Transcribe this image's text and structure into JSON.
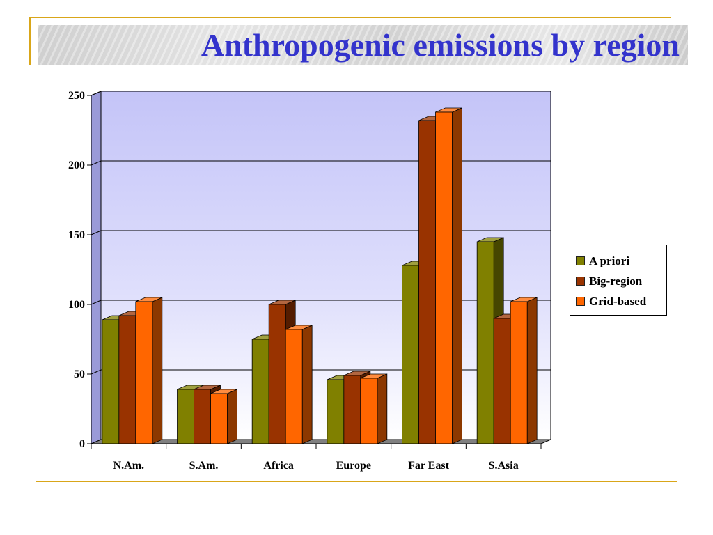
{
  "slide": {
    "title": "Anthropogenic emissions by region"
  },
  "chart_data": {
    "type": "bar",
    "title": "",
    "xlabel": "",
    "ylabel": "",
    "categories": [
      "N.Am.",
      "S.Am.",
      "Africa",
      "Europe",
      "Far East",
      "S.Asia"
    ],
    "series": [
      {
        "name": "A priori",
        "color": "#808000",
        "values": [
          89,
          39,
          75,
          46,
          128,
          145
        ]
      },
      {
        "name": "Big-region",
        "color": "#993300",
        "values": [
          92,
          39,
          100,
          49,
          232,
          90
        ]
      },
      {
        "name": "Grid-based",
        "color": "#ff6600",
        "values": [
          102,
          36,
          82,
          47,
          238,
          102
        ]
      }
    ],
    "ylim": [
      0,
      250
    ],
    "yticks": [
      0,
      50,
      100,
      150,
      200,
      250
    ],
    "grid": true,
    "legend_position": "right",
    "style": "3d-clustered-column"
  }
}
